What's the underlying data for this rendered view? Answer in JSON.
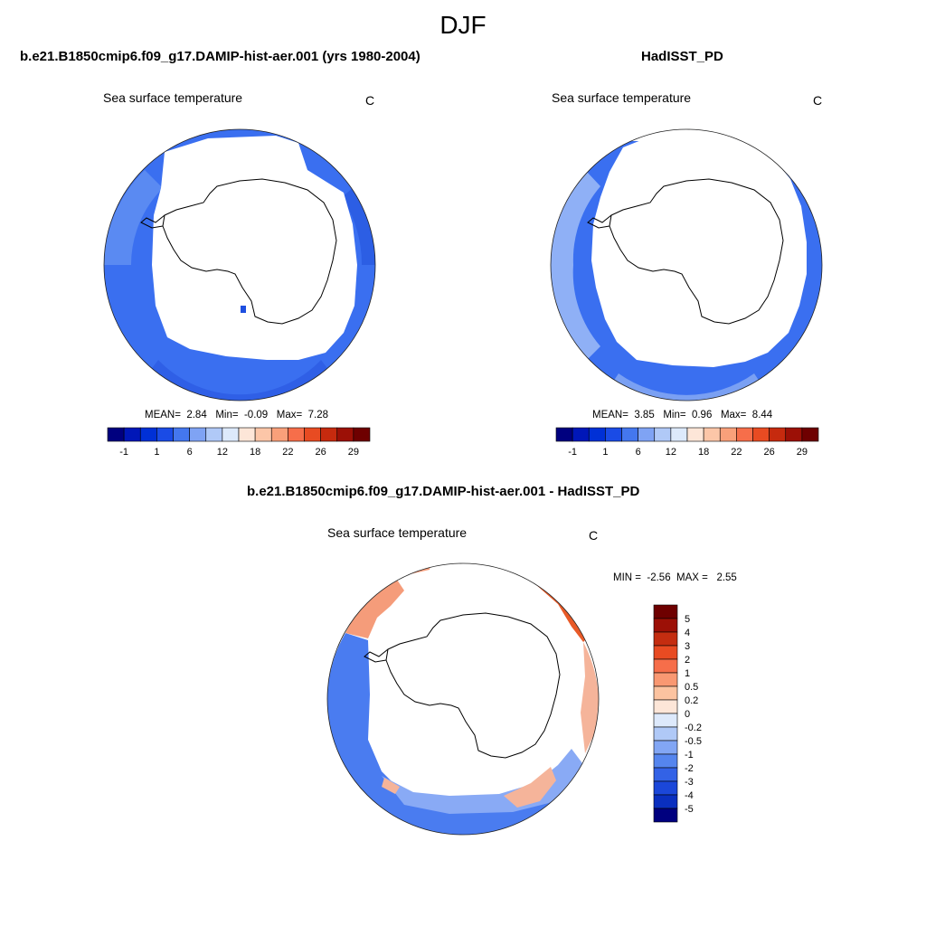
{
  "title": "DJF",
  "panels": [
    {
      "id": "model",
      "title": "b.e21.B1850cmip6.f09_g17.DAMIP-hist-aer.001 (yrs 1980-2004)",
      "variable": "Sea surface temperature",
      "units": "C",
      "stats": {
        "mean_label": "MEAN=",
        "mean": "2.84",
        "min_label": "Min=",
        "min": "-0.09",
        "max_label": "Max=",
        "max": "7.28"
      }
    },
    {
      "id": "obs",
      "title": "HadISST_PD",
      "variable": "Sea surface temperature",
      "units": "C",
      "stats": {
        "mean_label": "MEAN=",
        "mean": "3.85",
        "min_label": "Min=",
        "min": "0.96",
        "max_label": "Max=",
        "max": "8.44"
      }
    },
    {
      "id": "diff",
      "title": "b.e21.B1850cmip6.f09_g17.DAMIP-hist-aer.001 - HadISST_PD",
      "variable": "Sea surface temperature",
      "units": "C",
      "stats": {
        "min_label": "MIN =",
        "min": "-2.56",
        "max_label": "MAX =",
        "max": "2.55"
      }
    }
  ],
  "abs_colorbar": {
    "colors": [
      "#00007f",
      "#0017b8",
      "#0030d6",
      "#1a4be6",
      "#4477ee",
      "#7fa3f4",
      "#b0c9f7",
      "#dde9fb",
      "#fde6d8",
      "#fcc6a8",
      "#f9a07a",
      "#f66e4a",
      "#e84b22",
      "#c62a0e",
      "#9c1006",
      "#6e0000"
    ],
    "labels": [
      "-1",
      "1",
      "6",
      "12",
      "18",
      "22",
      "26",
      "29"
    ]
  },
  "diff_colorbar": {
    "colors": [
      "#6e0000",
      "#9c1006",
      "#c42d10",
      "#e84b22",
      "#f66e4a",
      "#f99872",
      "#fcc3a0",
      "#fde6d8",
      "#dde9fb",
      "#b0c9f7",
      "#82a6f4",
      "#5585ee",
      "#3362e6",
      "#1b47d9",
      "#0a2fbf",
      "#00007f"
    ],
    "labels": [
      "5",
      "4",
      "3",
      "2",
      "1",
      "0.5",
      "0.2",
      "0",
      "-0.2",
      "-0.5",
      "-1",
      "-2",
      "-3",
      "-4",
      "-5"
    ]
  },
  "colors": {
    "ocean_cold": "#3a6ff0",
    "ocean_mid": "#5a8af2",
    "ocean_light": "#90b0f5",
    "warm": "#f08060",
    "warm_strong": "#e85a28"
  }
}
